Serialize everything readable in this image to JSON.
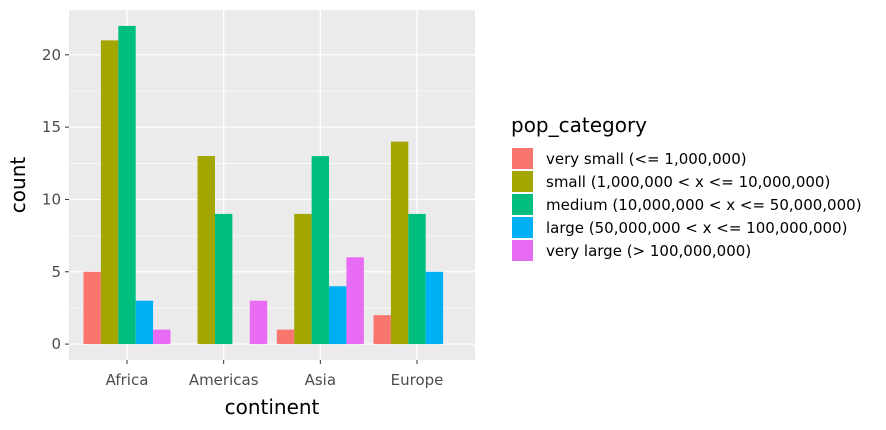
{
  "chart_data": {
    "type": "bar",
    "xlabel": "continent",
    "ylabel": "count",
    "ylim": [
      -1.1,
      23.1
    ],
    "yticks": [
      0,
      5,
      10,
      15,
      20
    ],
    "grid": true,
    "legend_placement": "right",
    "legend_title": "pop_category",
    "categories": [
      "Africa",
      "Americas",
      "Asia",
      "Europe"
    ],
    "series": [
      {
        "name": "very small (<= 1,000,000)",
        "color": "#F8766D",
        "values": [
          5,
          0,
          1,
          2
        ]
      },
      {
        "name": "small (1,000,000 < x <= 10,000,000)",
        "color": "#A3A500",
        "values": [
          21,
          13,
          9,
          14
        ]
      },
      {
        "name": "medium (10,000,000 < x <= 50,000,000)",
        "color": "#00BF7D",
        "values": [
          22,
          9,
          13,
          9
        ]
      },
      {
        "name": "large (50,000,000 < x <= 100,000,000)",
        "color": "#00B0F6",
        "values": [
          3,
          0,
          4,
          5
        ]
      },
      {
        "name": "very large (> 100,000,000)",
        "color": "#E76BF3",
        "values": [
          1,
          3,
          6,
          0
        ]
      }
    ]
  }
}
